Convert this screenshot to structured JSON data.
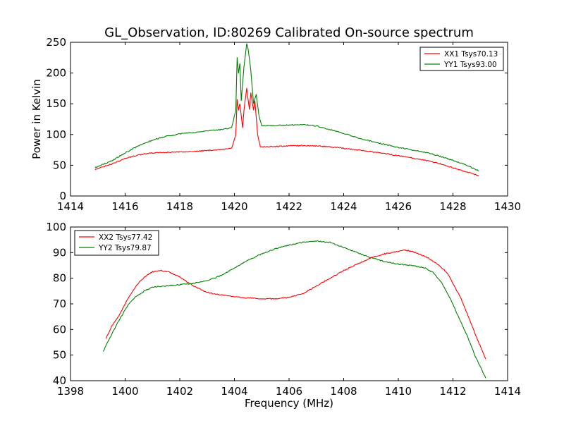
{
  "figure_title": "GL_Observation, ID:80269 Calibrated On-source spectrum",
  "chart_data": [
    {
      "type": "line",
      "title": "GL_Observation, ID:80269 Calibrated On-source spectrum",
      "xlabel": "",
      "ylabel": "Power in Kelvin",
      "xlim": [
        1414,
        1430
      ],
      "ylim": [
        0,
        250
      ],
      "xticks": [
        1414,
        1416,
        1418,
        1420,
        1422,
        1424,
        1426,
        1428,
        1430
      ],
      "yticks": [
        0,
        50,
        100,
        150,
        200,
        250
      ],
      "legend_position": "top-right",
      "grid": false,
      "series": [
        {
          "name": "XX1 Tsys70.13",
          "color": "#ff0000",
          "x": [
            1414.9,
            1415.5,
            1416.0,
            1416.5,
            1417.0,
            1417.5,
            1418.0,
            1418.5,
            1419.0,
            1419.5,
            1419.9,
            1420.05,
            1420.1,
            1420.15,
            1420.2,
            1420.3,
            1420.35,
            1420.45,
            1420.55,
            1420.6,
            1420.7,
            1420.75,
            1420.85,
            1420.95,
            1421.0,
            1421.5,
            1422.0,
            1422.5,
            1423.0,
            1423.5,
            1424.0,
            1424.5,
            1425.0,
            1425.5,
            1426.0,
            1426.5,
            1427.0,
            1427.5,
            1428.0,
            1428.5,
            1428.95
          ],
          "y": [
            43,
            52,
            61,
            67,
            70,
            71,
            71.5,
            72.5,
            74,
            75.5,
            78,
            100,
            158,
            140,
            150,
            110,
            140,
            175,
            140,
            168,
            140,
            155,
            100,
            80,
            80,
            80.5,
            81.5,
            82,
            81.5,
            80,
            77.5,
            75,
            72,
            69,
            65.5,
            62,
            58,
            53,
            46,
            39,
            33
          ]
        },
        {
          "name": "YY1 Tsys93.00",
          "color": "#008000",
          "x": [
            1414.9,
            1415.5,
            1416.0,
            1416.5,
            1417.0,
            1417.5,
            1418.0,
            1418.5,
            1419.0,
            1419.5,
            1419.9,
            1420.05,
            1420.1,
            1420.15,
            1420.2,
            1420.25,
            1420.35,
            1420.45,
            1420.5,
            1420.6,
            1420.7,
            1420.8,
            1420.9,
            1421.0,
            1421.5,
            1422.0,
            1422.5,
            1423.0,
            1423.5,
            1424.0,
            1424.5,
            1425.0,
            1425.5,
            1426.0,
            1426.5,
            1427.0,
            1427.5,
            1428.0,
            1428.5,
            1428.95
          ],
          "y": [
            46,
            57,
            70,
            82,
            91,
            97,
            101,
            103,
            106,
            108,
            111,
            140,
            225,
            200,
            215,
            155,
            210,
            248,
            240,
            205,
            150,
            165,
            130,
            114,
            114.5,
            115.5,
            116,
            114,
            108,
            102,
            95,
            89,
            84,
            79,
            75,
            71,
            65,
            58,
            50,
            41
          ]
        }
      ]
    },
    {
      "type": "line",
      "title": "",
      "xlabel": "Frequency (MHz)",
      "ylabel": "",
      "xlim": [
        1398,
        1414
      ],
      "ylim": [
        40,
        100
      ],
      "xticks": [
        1398,
        1400,
        1402,
        1404,
        1406,
        1408,
        1410,
        1412,
        1414
      ],
      "yticks": [
        40,
        50,
        60,
        70,
        80,
        90,
        100
      ],
      "legend_position": "top-left",
      "grid": false,
      "series": [
        {
          "name": "XX2 Tsys77.42",
          "color": "#ff0000",
          "x": [
            1399.3,
            1399.5,
            1399.8,
            1400.1,
            1400.4,
            1400.7,
            1401.0,
            1401.3,
            1401.6,
            1402.0,
            1402.5,
            1403.0,
            1403.5,
            1404.0,
            1404.5,
            1405.0,
            1405.5,
            1406.0,
            1406.5,
            1407.0,
            1407.5,
            1408.0,
            1408.5,
            1409.0,
            1409.5,
            1410.0,
            1410.2,
            1410.5,
            1411.0,
            1411.5,
            1411.8,
            1412.0,
            1412.3,
            1412.6,
            1412.9,
            1413.2
          ],
          "y": [
            56.5,
            61,
            66,
            72,
            77,
            80.5,
            82.5,
            83,
            82.5,
            80.5,
            77,
            74.5,
            73.5,
            72.8,
            72.3,
            72,
            72,
            72.5,
            74,
            77,
            80,
            83,
            85.5,
            88,
            89.5,
            90.5,
            91,
            90.5,
            88.5,
            85,
            82,
            78,
            72,
            64,
            56,
            48.5
          ]
        },
        {
          "name": "YY2 Tsys79.87",
          "color": "#008000",
          "x": [
            1399.2,
            1399.5,
            1399.8,
            1400.1,
            1400.4,
            1400.7,
            1401.0,
            1401.5,
            1402.0,
            1402.5,
            1403.0,
            1403.5,
            1404.0,
            1404.5,
            1405.0,
            1405.5,
            1406.0,
            1406.5,
            1407.0,
            1407.5,
            1408.0,
            1408.5,
            1409.0,
            1409.5,
            1410.0,
            1410.5,
            1411.0,
            1411.3,
            1411.6,
            1411.9,
            1412.2,
            1412.5,
            1412.8,
            1413.2
          ],
          "y": [
            51.5,
            58,
            64,
            69.5,
            73,
            75,
            76.5,
            77,
            77.5,
            78,
            79,
            81,
            84,
            87,
            89.5,
            91.5,
            93,
            94,
            94.5,
            94,
            92,
            90,
            88,
            86.5,
            85.5,
            85,
            84,
            82,
            78,
            72,
            65,
            58,
            50,
            41
          ]
        }
      ]
    }
  ]
}
